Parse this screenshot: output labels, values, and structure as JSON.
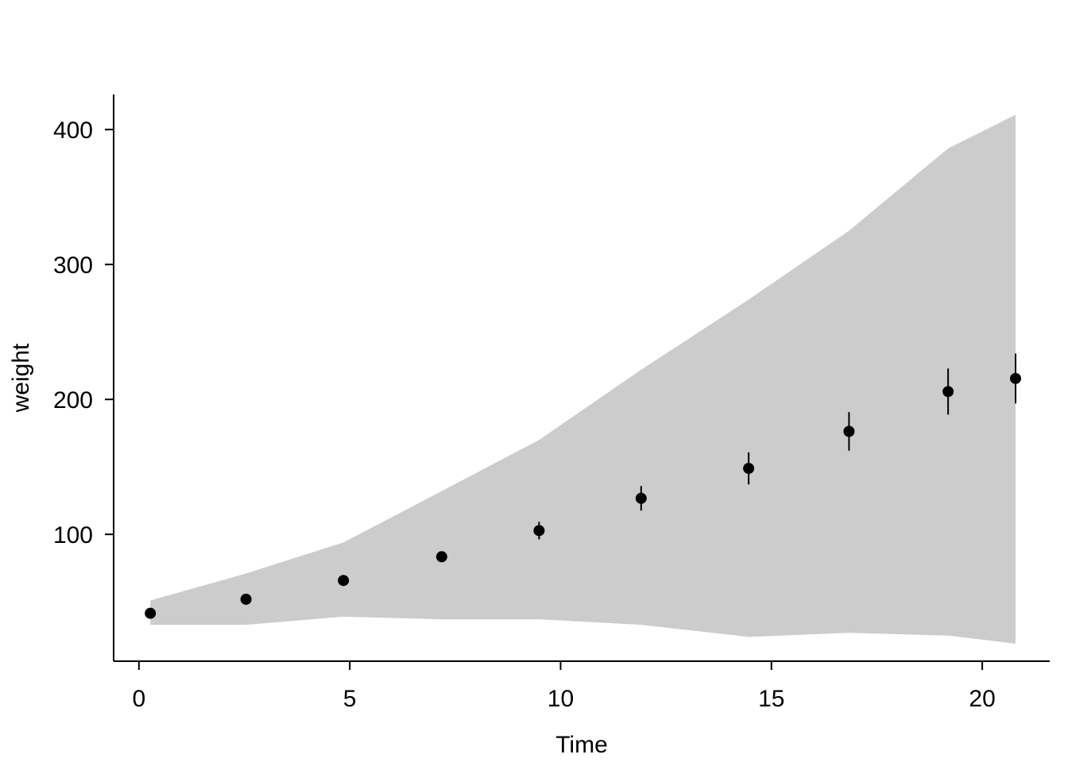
{
  "chart_data": {
    "type": "scatter",
    "title": "",
    "xlabel": "Time",
    "ylabel": "weight",
    "xlim": [
      -0.6,
      21.6
    ],
    "ylim": [
      6,
      426
    ],
    "xticks": [
      0,
      5,
      10,
      15,
      20
    ],
    "xtick_labels": [
      "0",
      "5",
      "10",
      "15",
      "20"
    ],
    "yticks": [
      100,
      200,
      300,
      400
    ],
    "ytick_labels": [
      "100",
      "200",
      "300",
      "400"
    ],
    "grid": false,
    "legend": "none",
    "colors": {
      "points": "#000000",
      "band": "#cccccc",
      "axis": "#000000"
    },
    "series": [
      {
        "kind": "points_with_error_bars",
        "x": [
          0.27,
          2.54,
          4.85,
          7.18,
          9.49,
          11.91,
          14.46,
          16.84,
          19.19,
          20.79
        ],
        "y": [
          41.5,
          51.9,
          65.8,
          83.4,
          102.8,
          126.7,
          148.9,
          176.3,
          205.8,
          215.5
        ],
        "err_low": [
          40.7,
          50.9,
          64.4,
          80.6,
          96.3,
          117.6,
          137.0,
          162.0,
          188.7,
          197.0
        ],
        "err_high": [
          42.3,
          52.9,
          67.2,
          86.2,
          109.3,
          135.8,
          160.8,
          190.6,
          222.9,
          234.0
        ]
      },
      {
        "kind": "range_band",
        "x": [
          0.27,
          2.54,
          4.85,
          7.18,
          9.49,
          11.91,
          14.46,
          16.84,
          19.19,
          20.79
        ],
        "lower": [
          33,
          33,
          39,
          37,
          37,
          33,
          24,
          27,
          25,
          19
        ],
        "upper": [
          51,
          71,
          94,
          132,
          170,
          222,
          274,
          325,
          386,
          411
        ]
      }
    ]
  }
}
